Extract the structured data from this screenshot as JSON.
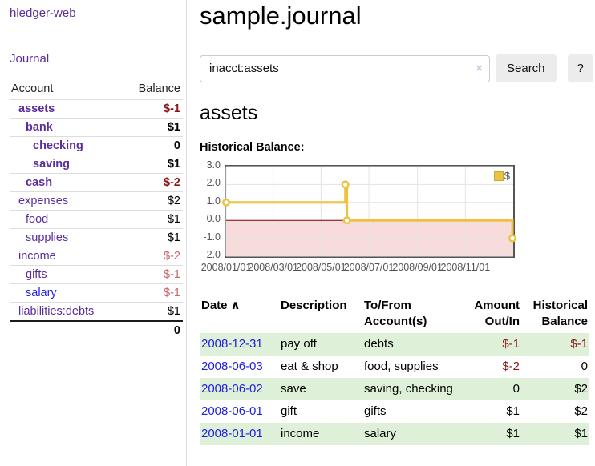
{
  "sidebar": {
    "brand": "hledger-web",
    "nav": {
      "journal": "Journal"
    },
    "accounts_table": {
      "headers": [
        "Account",
        "Balance"
      ],
      "rows": [
        {
          "name": "assets",
          "balance": "$-1",
          "depth": 1,
          "bold": true,
          "balance_style": "neg-dark",
          "link_style": "purple"
        },
        {
          "name": "bank",
          "balance": "$1",
          "depth": 2,
          "bold": true,
          "balance_style": "normal",
          "link_style": "purple"
        },
        {
          "name": "checking",
          "balance": "0",
          "depth": 3,
          "bold": true,
          "balance_style": "normal",
          "link_style": "purple"
        },
        {
          "name": "saving",
          "balance": "$1",
          "depth": 3,
          "bold": true,
          "balance_style": "normal",
          "link_style": "purple"
        },
        {
          "name": "cash",
          "balance": "$-2",
          "depth": 2,
          "bold": true,
          "balance_style": "neg-dark",
          "link_style": "purple"
        },
        {
          "name": "expenses",
          "balance": "$2",
          "depth": 1,
          "bold": false,
          "balance_style": "normal",
          "link_style": "purple"
        },
        {
          "name": "food",
          "balance": "$1",
          "depth": 2,
          "bold": false,
          "balance_style": "normal",
          "link_style": "purple"
        },
        {
          "name": "supplies",
          "balance": "$1",
          "depth": 2,
          "bold": false,
          "balance_style": "normal",
          "link_style": "purple"
        },
        {
          "name": "income",
          "balance": "$-2",
          "depth": 1,
          "bold": false,
          "balance_style": "neg-light",
          "link_style": "purple"
        },
        {
          "name": "gifts",
          "balance": "$-1",
          "depth": 2,
          "bold": false,
          "balance_style": "neg-light",
          "link_style": "purple"
        },
        {
          "name": "salary",
          "balance": "$-1",
          "depth": 2,
          "bold": false,
          "balance_style": "neg-light",
          "link_style": "blue"
        },
        {
          "name": "liabilities:debts",
          "balance": "$1",
          "depth": 1,
          "bold": false,
          "balance_style": "normal",
          "link_style": "purple"
        }
      ],
      "total": "0"
    }
  },
  "main": {
    "title": "sample.journal",
    "search": {
      "value": "inacct:assets",
      "clear_icon": "×",
      "search_label": "Search",
      "help_label": "?"
    },
    "section_title": "assets",
    "chart_label": "Historical Balance:",
    "register_table": {
      "headers": {
        "date": "Date",
        "date_sort_icon": "∧",
        "description": "Description",
        "accounts": "To/From Account(s)",
        "amount": "Amount Out/In",
        "balance": "Historical Balance"
      },
      "rows": [
        {
          "date": "2008-12-31",
          "description": "pay off",
          "accounts": "debts",
          "amount": "$-1",
          "amount_negative": true,
          "balance": "$-1",
          "balance_negative": true
        },
        {
          "date": "2008-06-03",
          "description": "eat & shop",
          "accounts": "food, supplies",
          "amount": "$-2",
          "amount_negative": true,
          "balance": "0",
          "balance_negative": false
        },
        {
          "date": "2008-06-02",
          "description": "save",
          "accounts": "saving, checking",
          "amount": "0",
          "amount_negative": false,
          "balance": "$2",
          "balance_negative": false
        },
        {
          "date": "2008-06-01",
          "description": "gift",
          "accounts": "gifts",
          "amount": "$1",
          "amount_negative": false,
          "balance": "$2",
          "balance_negative": false
        },
        {
          "date": "2008-01-01",
          "description": "income",
          "accounts": "salary",
          "amount": "$1",
          "amount_negative": false,
          "balance": "$1",
          "balance_negative": false
        }
      ]
    }
  },
  "chart_data": {
    "type": "line",
    "step": true,
    "title": "Historical Balance:",
    "series": [
      {
        "name": "$",
        "color": "#EDC240",
        "points": [
          [
            "2008-01-01",
            1
          ],
          [
            "2008-06-01",
            2
          ],
          [
            "2008-06-03",
            0
          ],
          [
            "2008-12-31",
            -1
          ]
        ]
      }
    ],
    "x_range": [
      "2008-01-01",
      "2009-01-01"
    ],
    "ylim": [
      -2,
      3
    ],
    "yticks": [
      3,
      2,
      1,
      0,
      -1,
      -2
    ],
    "xticks": [
      "2008/01/01",
      "2008/03/01",
      "2008/05/01",
      "2008/07/01",
      "2008/09/01",
      "2008/11/01"
    ],
    "grid": true,
    "legend_position": "top-right",
    "zero_line_color": "#8b0000",
    "negative_region": {
      "from": -2,
      "to": 0,
      "color": "#f8dcdc"
    },
    "grid_color": "#e3e3e3",
    "border_color": "#545454"
  },
  "colors": {
    "link_purple": "#5a2d9c",
    "link_blue": "#2222dd",
    "negative_dark": "#8b1515",
    "negative_light": "#c4686c",
    "row_stripe_green": "#dff0d8",
    "series_yellow": "#EDC240",
    "button_gray": "#ececec"
  }
}
